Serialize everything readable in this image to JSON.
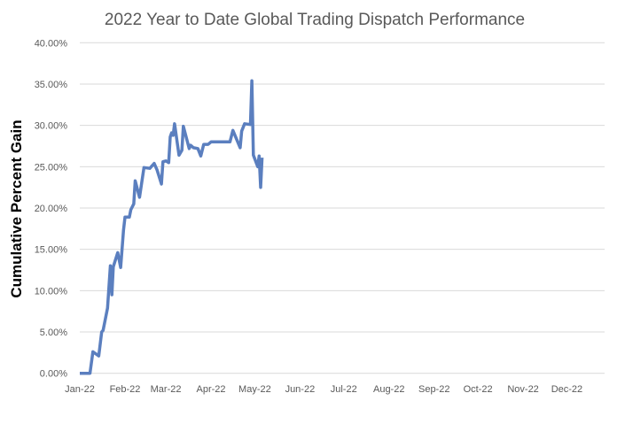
{
  "chart_data": {
    "type": "line",
    "title": "2022 Year to Date Global Trading Dispatch Performance",
    "xlabel": "",
    "ylabel": "Cumulative Percent Gain",
    "xlim": [
      "2022-01-01",
      "2022-12-31"
    ],
    "ylim": [
      0,
      40
    ],
    "grid": true,
    "line_color": "#5b7fbf",
    "grid_color": "#d9d9d9",
    "x_ticks": [
      {
        "date": "2022-01-01",
        "label": "Jan-22"
      },
      {
        "date": "2022-02-01",
        "label": "Feb-22"
      },
      {
        "date": "2022-03-01",
        "label": "Mar-22"
      },
      {
        "date": "2022-04-01",
        "label": "Apr-22"
      },
      {
        "date": "2022-05-01",
        "label": "May-22"
      },
      {
        "date": "2022-06-01",
        "label": "Jun-22"
      },
      {
        "date": "2022-07-01",
        "label": "Jul-22"
      },
      {
        "date": "2022-08-01",
        "label": "Aug-22"
      },
      {
        "date": "2022-09-01",
        "label": "Sep-22"
      },
      {
        "date": "2022-10-01",
        "label": "Oct-22"
      },
      {
        "date": "2022-11-01",
        "label": "Nov-22"
      },
      {
        "date": "2022-12-01",
        "label": "Dec-22"
      }
    ],
    "y_ticks": [
      {
        "value": 0,
        "label": "0.00%"
      },
      {
        "value": 5,
        "label": "5.00%"
      },
      {
        "value": 10,
        "label": "10.00%"
      },
      {
        "value": 15,
        "label": "15.00%"
      },
      {
        "value": 20,
        "label": "20.00%"
      },
      {
        "value": 25,
        "label": "25.00%"
      },
      {
        "value": 30,
        "label": "30.00%"
      },
      {
        "value": 35,
        "label": "35.00%"
      },
      {
        "value": 40,
        "label": "40.00%"
      }
    ],
    "series": [
      {
        "x": [
          "2022-01-01",
          "2022-01-08",
          "2022-01-10",
          "2022-01-14",
          "2022-01-16",
          "2022-01-17",
          "2022-01-20",
          "2022-01-22",
          "2022-01-23",
          "2022-01-24",
          "2022-01-27",
          "2022-01-29",
          "2022-01-31",
          "2022-02-01",
          "2022-02-04",
          "2022-02-05",
          "2022-02-07",
          "2022-02-08",
          "2022-02-11",
          "2022-02-14",
          "2022-02-18",
          "2022-02-21",
          "2022-02-23",
          "2022-02-26",
          "2022-02-27",
          "2022-03-01",
          "2022-03-03",
          "2022-03-04",
          "2022-03-05",
          "2022-03-06",
          "2022-03-07",
          "2022-03-10",
          "2022-03-12",
          "2022-03-13",
          "2022-03-17",
          "2022-03-18",
          "2022-03-20",
          "2022-03-23",
          "2022-03-25",
          "2022-03-27",
          "2022-03-30",
          "2022-04-01",
          "2022-04-14",
          "2022-04-16",
          "2022-04-21",
          "2022-04-22",
          "2022-04-24",
          "2022-04-28",
          "2022-04-29",
          "2022-04-30",
          "2022-05-03",
          "2022-05-04",
          "2022-05-05",
          "2022-05-06"
        ],
        "values": [
          0,
          0,
          2.6,
          2.1,
          5.0,
          5.2,
          7.9,
          13.0,
          9.5,
          12.9,
          14.6,
          12.8,
          17.3,
          18.9,
          18.9,
          19.8,
          20.5,
          23.3,
          21.3,
          24.9,
          24.8,
          25.4,
          24.6,
          22.9,
          25.6,
          25.7,
          25.5,
          28.6,
          29.1,
          28.8,
          30.2,
          26.4,
          27.0,
          29.9,
          27.2,
          27.6,
          27.3,
          27.2,
          26.3,
          27.7,
          27.7,
          28.0,
          28.0,
          29.4,
          27.3,
          29.3,
          30.2,
          30.1,
          35.4,
          26.4,
          25.0,
          26.3,
          22.5,
          26.1
        ]
      }
    ]
  }
}
